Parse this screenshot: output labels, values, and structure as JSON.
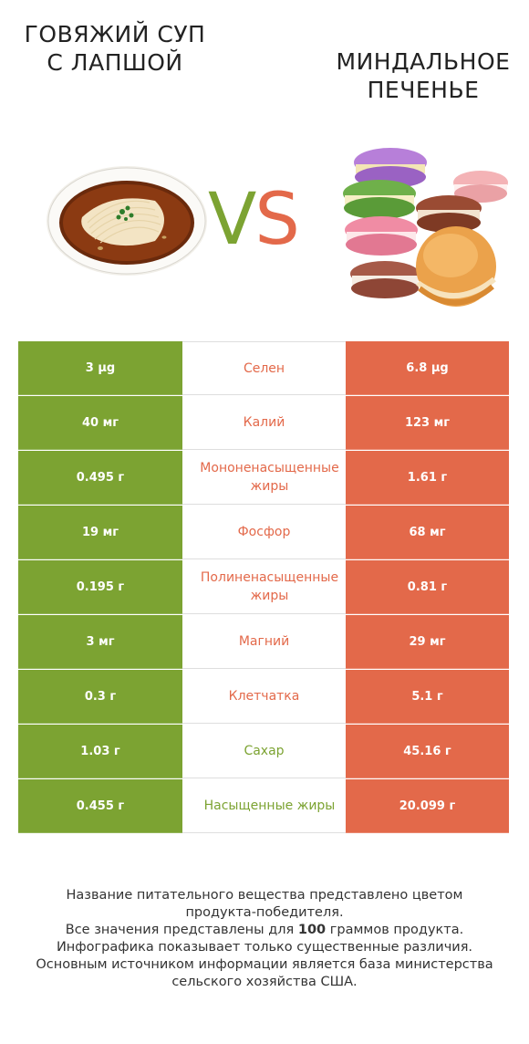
{
  "header": {
    "left_title": "ГОВЯЖИЙ СУП С ЛАПШОЙ",
    "right_title": "МИНДАЛЬНОЕ ПЕЧЕНЬЕ",
    "vs_v": "V",
    "vs_s": "S"
  },
  "colors": {
    "left": "#7ca332",
    "right": "#e3694a"
  },
  "rows": [
    {
      "left": "3 µg",
      "nutrient": "Селен",
      "right": "6.8 µg",
      "winner": "right"
    },
    {
      "left": "40 мг",
      "nutrient": "Калий",
      "right": "123 мг",
      "winner": "right"
    },
    {
      "left": "0.495 г",
      "nutrient": "Мононенасыщенные жиры",
      "right": "1.61 г",
      "winner": "right"
    },
    {
      "left": "19 мг",
      "nutrient": "Фосфор",
      "right": "68 мг",
      "winner": "right"
    },
    {
      "left": "0.195 г",
      "nutrient": "Полиненасыщенные жиры",
      "right": "0.81 г",
      "winner": "right"
    },
    {
      "left": "3 мг",
      "nutrient": "Магний",
      "right": "29 мг",
      "winner": "right"
    },
    {
      "left": "0.3 г",
      "nutrient": "Клетчатка",
      "right": "5.1 г",
      "winner": "right"
    },
    {
      "left": "1.03 г",
      "nutrient": "Сахар",
      "right": "45.16 г",
      "winner": "left"
    },
    {
      "left": "0.455 г",
      "nutrient": "Насыщенные жиры",
      "right": "20.099 г",
      "winner": "left"
    }
  ],
  "footer": {
    "line1": "Название питательного вещества представлено цветом",
    "line2": "продукта-победителя.",
    "line3_pre": "Все значения представлены для ",
    "line3_bold": "100",
    "line3_post": " граммов продукта.",
    "line4": "Инфографика показывает только существенные различия.",
    "line5": "Основным источником информации является база министерства",
    "line6": "сельского хозяйства США."
  }
}
